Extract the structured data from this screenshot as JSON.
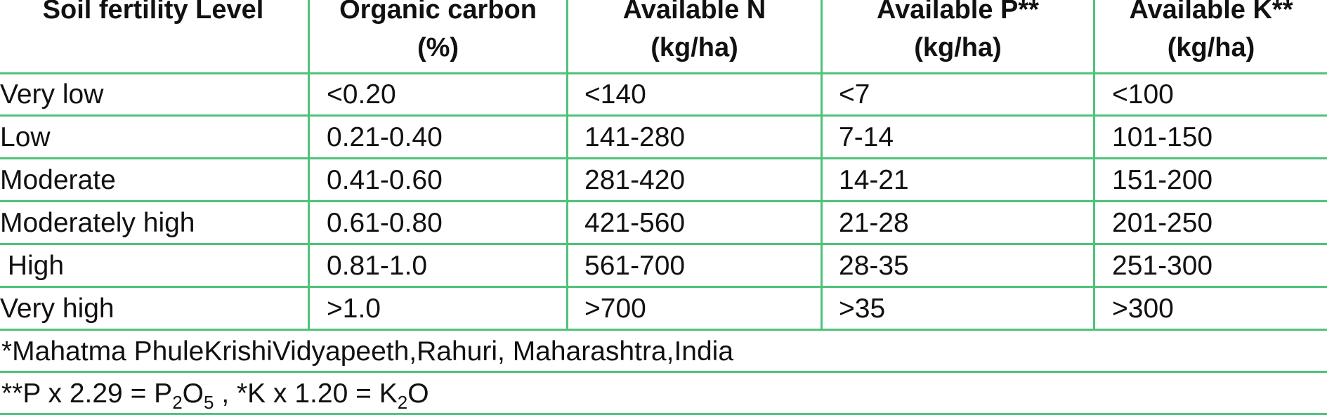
{
  "table": {
    "headers": [
      {
        "line1": "Soil fertility Level",
        "line2": ""
      },
      {
        "line1": "Organic carbon",
        "line2": "(%)"
      },
      {
        "line1": "Available N",
        "line2": "(kg/ha)"
      },
      {
        "line1": "Available P**",
        "line2": "(kg/ha)"
      },
      {
        "line1": "Available K**",
        "line2": "(kg/ha)"
      }
    ],
    "rows": [
      [
        "Very low",
        "<0.20",
        "<140",
        "<7",
        "<100"
      ],
      [
        "Low",
        "0.21-0.40",
        "141-280",
        "7-14",
        "101-150"
      ],
      [
        "Moderate",
        "0.41-0.60",
        "281-420",
        "14-21",
        "151-200"
      ],
      [
        "Moderately high",
        "0.61-0.80",
        "421-560",
        "21-28",
        "201-250"
      ],
      [
        " High",
        "0.81-1.0",
        "561-700",
        "28-35",
        "251-300"
      ],
      [
        "Very high",
        ">1.0",
        ">700",
        ">35",
        ">300"
      ]
    ]
  },
  "footnotes": {
    "source": "*Mahatma PhuleKrishiVidyapeeth,Rahuri, Maharashtra,India",
    "conversion": {
      "p_part": "**P x 2.29 = P",
      "p_sub1": "2",
      "p_mid": "O",
      "p_sub2": "5",
      "k_part": " , *K x 1.20 = K",
      "k_sub": "2",
      "k_end": "O"
    }
  },
  "colors": {
    "grid": "#4fc27a",
    "text": "#111111",
    "background": "#ffffff"
  }
}
